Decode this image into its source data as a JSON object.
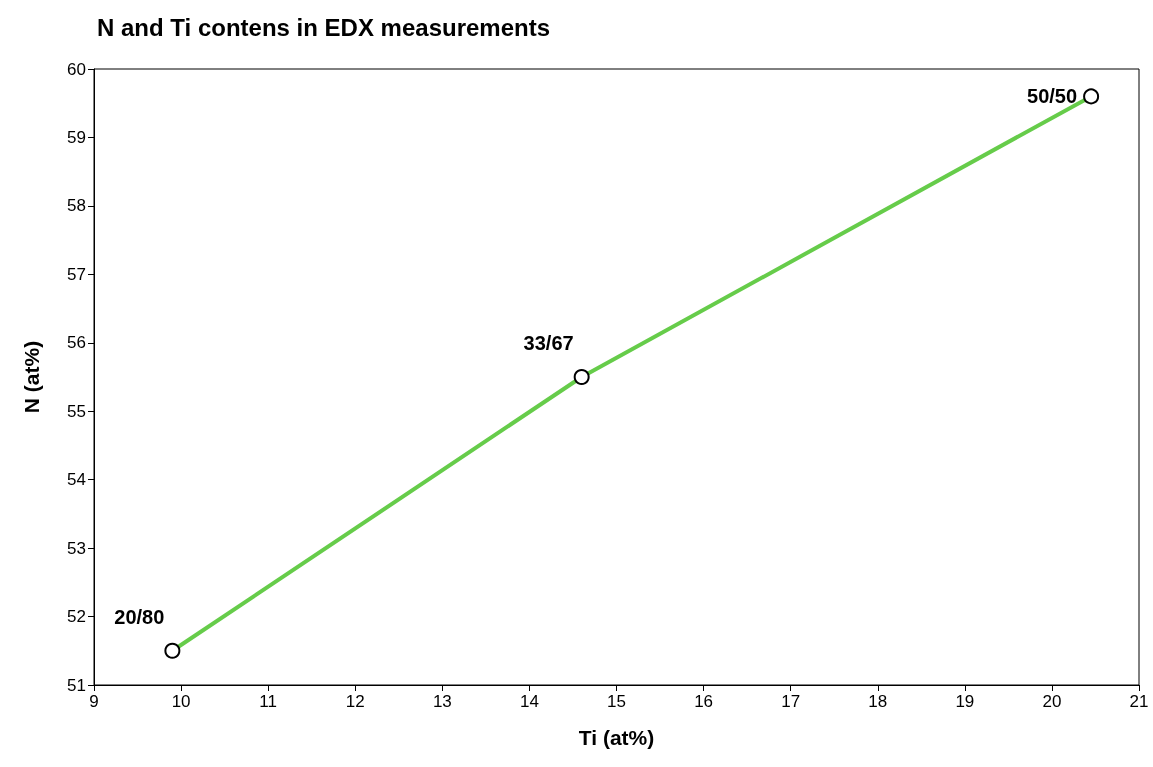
{
  "chart_data": {
    "type": "line",
    "title": "N and Ti contens in EDX measurements",
    "xlabel": "Ti (at%)",
    "ylabel": "N (at%)",
    "x": [
      9.9,
      14.6,
      20.45
    ],
    "series": [
      {
        "color": "#66cc4a",
        "values": [
          51.5,
          55.5,
          59.6
        ]
      }
    ],
    "xlim": [
      9,
      21
    ],
    "xticks": [
      9,
      10,
      11,
      12,
      13,
      14,
      15,
      16,
      17,
      18,
      19,
      20,
      21
    ],
    "ylim": [
      51,
      60
    ],
    "yticks": [
      51,
      52,
      53,
      54,
      55,
      56,
      57,
      58,
      59,
      60
    ],
    "marker": "circle",
    "line_style": "solid",
    "grid": false,
    "annotations": [
      {
        "text": "20/80",
        "x": 9.9,
        "y": 51.5
      },
      {
        "text": "33/67",
        "x": 14.6,
        "y": 55.5
      },
      {
        "text": "50/50",
        "x": 20.45,
        "y": 59.6
      }
    ]
  }
}
